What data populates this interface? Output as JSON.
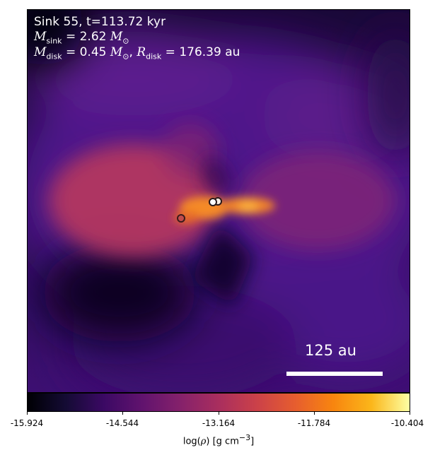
{
  "header": {
    "line1": "Sink 55, t=113.72 kyr",
    "msink_label": "M",
    "msink_sub": "sink",
    "msink_value": " = 2.62 ",
    "msun_symbol": "M",
    "msun_sub": "⊙",
    "mdisk_label": "M",
    "mdisk_sub": "disk",
    "mdisk_value": " = 0.45 ",
    "rdisk_sep": ", ",
    "rdisk_label": "R",
    "rdisk_sub": "disk",
    "rdisk_value": " = 176.39 au"
  },
  "scale_bar": {
    "label": "125 au"
  },
  "colorbar": {
    "ticks": [
      "-15.924",
      "-14.544",
      "-13.164",
      "-11.784",
      "-10.404"
    ],
    "label_prefix": "log(",
    "label_rho": "ρ",
    "label_suffix": ") [g cm",
    "label_exp": "−3",
    "label_close": "]"
  },
  "colors": {
    "background_dark": "#0a0420",
    "envelope": "#5a1a8a",
    "lobe": "#b8385f",
    "disk_hot": "#f97d1e"
  }
}
